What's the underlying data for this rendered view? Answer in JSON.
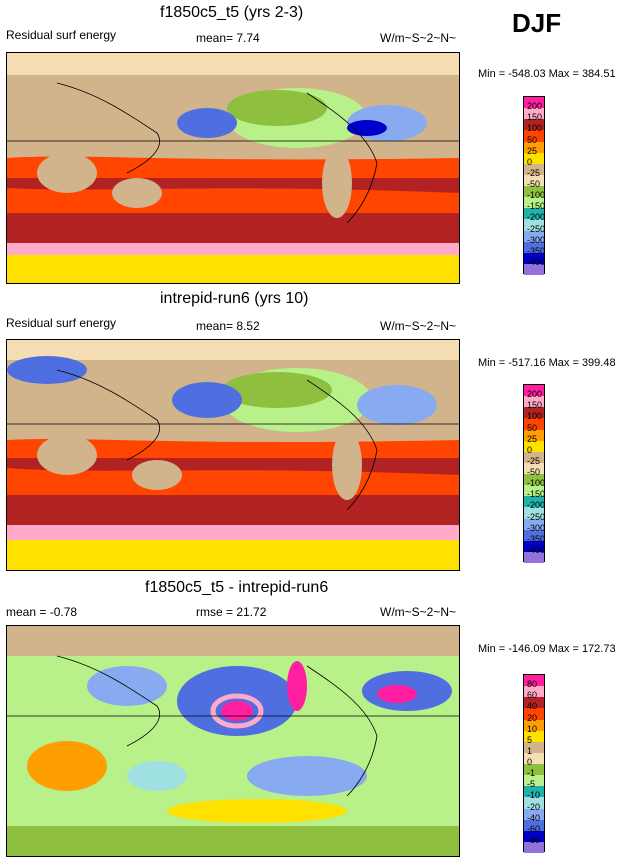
{
  "season": "DJF",
  "panels": [
    {
      "title": "f1850c5_t5 (yrs 2-3)",
      "left_label": "Residual surf energy",
      "mid_label": "mean=   7.74",
      "units": "W/m~S~2~N~",
      "minmax": "Min = -548.03 Max = 384.51",
      "levels": [
        "200",
        "150",
        "100",
        "50",
        "25",
        "0",
        "-25",
        "-50",
        "-100",
        "-150",
        "-200",
        "-250",
        "-300",
        "-350",
        "-400"
      ],
      "colors": [
        "#ff1fa0",
        "#ffaac8",
        "#b22222",
        "#ff4500",
        "#ff9e00",
        "#ffe100",
        "#d2b48c",
        "#f5deb3",
        "#8fbf3f",
        "#b8f08a",
        "#20b2aa",
        "#9fe0e0",
        "#87aaf0",
        "#4f6fe0",
        "#0000cc",
        "#9370db"
      ]
    },
    {
      "title": "intrepid-run6 (yrs 10)",
      "left_label": "Residual surf energy",
      "mid_label": "mean=   8.52",
      "units": "W/m~S~2~N~",
      "minmax": "Min = -517.16 Max = 399.48",
      "levels": [
        "200",
        "150",
        "100",
        "50",
        "25",
        "0",
        "-25",
        "-50",
        "-100",
        "-150",
        "-200",
        "-250",
        "-300",
        "-350",
        "-400"
      ],
      "colors": [
        "#ff1fa0",
        "#ffaac8",
        "#b22222",
        "#ff4500",
        "#ff9e00",
        "#ffe100",
        "#d2b48c",
        "#f5deb3",
        "#8fbf3f",
        "#b8f08a",
        "#20b2aa",
        "#9fe0e0",
        "#87aaf0",
        "#4f6fe0",
        "#0000cc",
        "#9370db"
      ]
    },
    {
      "title": "f1850c5_t5 - intrepid-run6",
      "left_label": "mean =  -0.78",
      "mid_label": "rmse =  21.72",
      "units": "W/m~S~2~N~",
      "minmax": "Min = -146.09 Max = 172.73",
      "levels": [
        "80",
        "60",
        "40",
        "20",
        "10",
        "5",
        "1",
        "0",
        "-1",
        "-5",
        "-10",
        "-20",
        "-40",
        "-60",
        "-80"
      ],
      "colors": [
        "#ff1fa0",
        "#ffaac8",
        "#b22222",
        "#ff4500",
        "#ff9e00",
        "#ffe100",
        "#d2b48c",
        "#f5deb3",
        "#8fbf3f",
        "#b8f08a",
        "#20b2aa",
        "#9fe0e0",
        "#87aaf0",
        "#4f6fe0",
        "#0000cc",
        "#9370db"
      ]
    }
  ]
}
